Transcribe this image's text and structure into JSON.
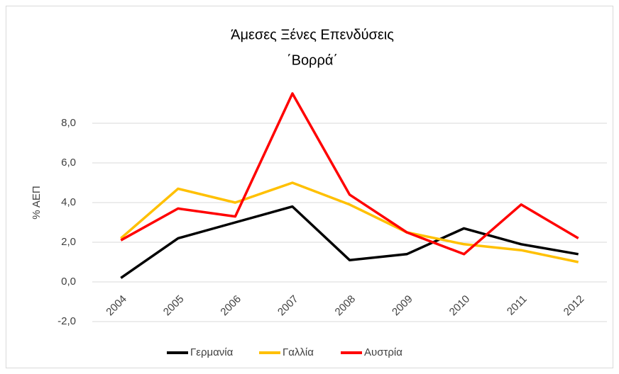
{
  "chart_data": {
    "type": "line",
    "title": "Άμεσες Ξένες Επενδύσεις",
    "subtitle": "΄Βορρά΄",
    "y_label": "% ΑΕΠ",
    "categories": [
      "2004",
      "2005",
      "2006",
      "2007",
      "2008",
      "2009",
      "2010",
      "2011",
      "2012"
    ],
    "series": [
      {
        "name": "Γερμανία",
        "color": "#000000",
        "values": [
          0.2,
          2.2,
          3.0,
          3.8,
          1.1,
          1.4,
          2.7,
          1.9,
          1.4
        ]
      },
      {
        "name": "Γαλλία",
        "color": "#ffc000",
        "values": [
          2.2,
          4.7,
          4.0,
          5.0,
          3.9,
          2.5,
          1.9,
          1.6,
          1.0
        ]
      },
      {
        "name": "Αυστρία",
        "color": "#ff0000",
        "values": [
          2.1,
          3.7,
          3.3,
          9.5,
          4.4,
          2.5,
          1.4,
          3.9,
          2.2
        ]
      }
    ],
    "ylim": [
      -2,
      10
    ],
    "yticks": [
      {
        "value": -2,
        "label": "-2,0"
      },
      {
        "value": 0,
        "label": "0,0"
      },
      {
        "value": 2,
        "label": "2,0"
      },
      {
        "value": 4,
        "label": "4,0"
      },
      {
        "value": 6,
        "label": "6,0"
      },
      {
        "value": 8,
        "label": "8,0"
      }
    ],
    "grid": true,
    "legend": "bottom"
  }
}
